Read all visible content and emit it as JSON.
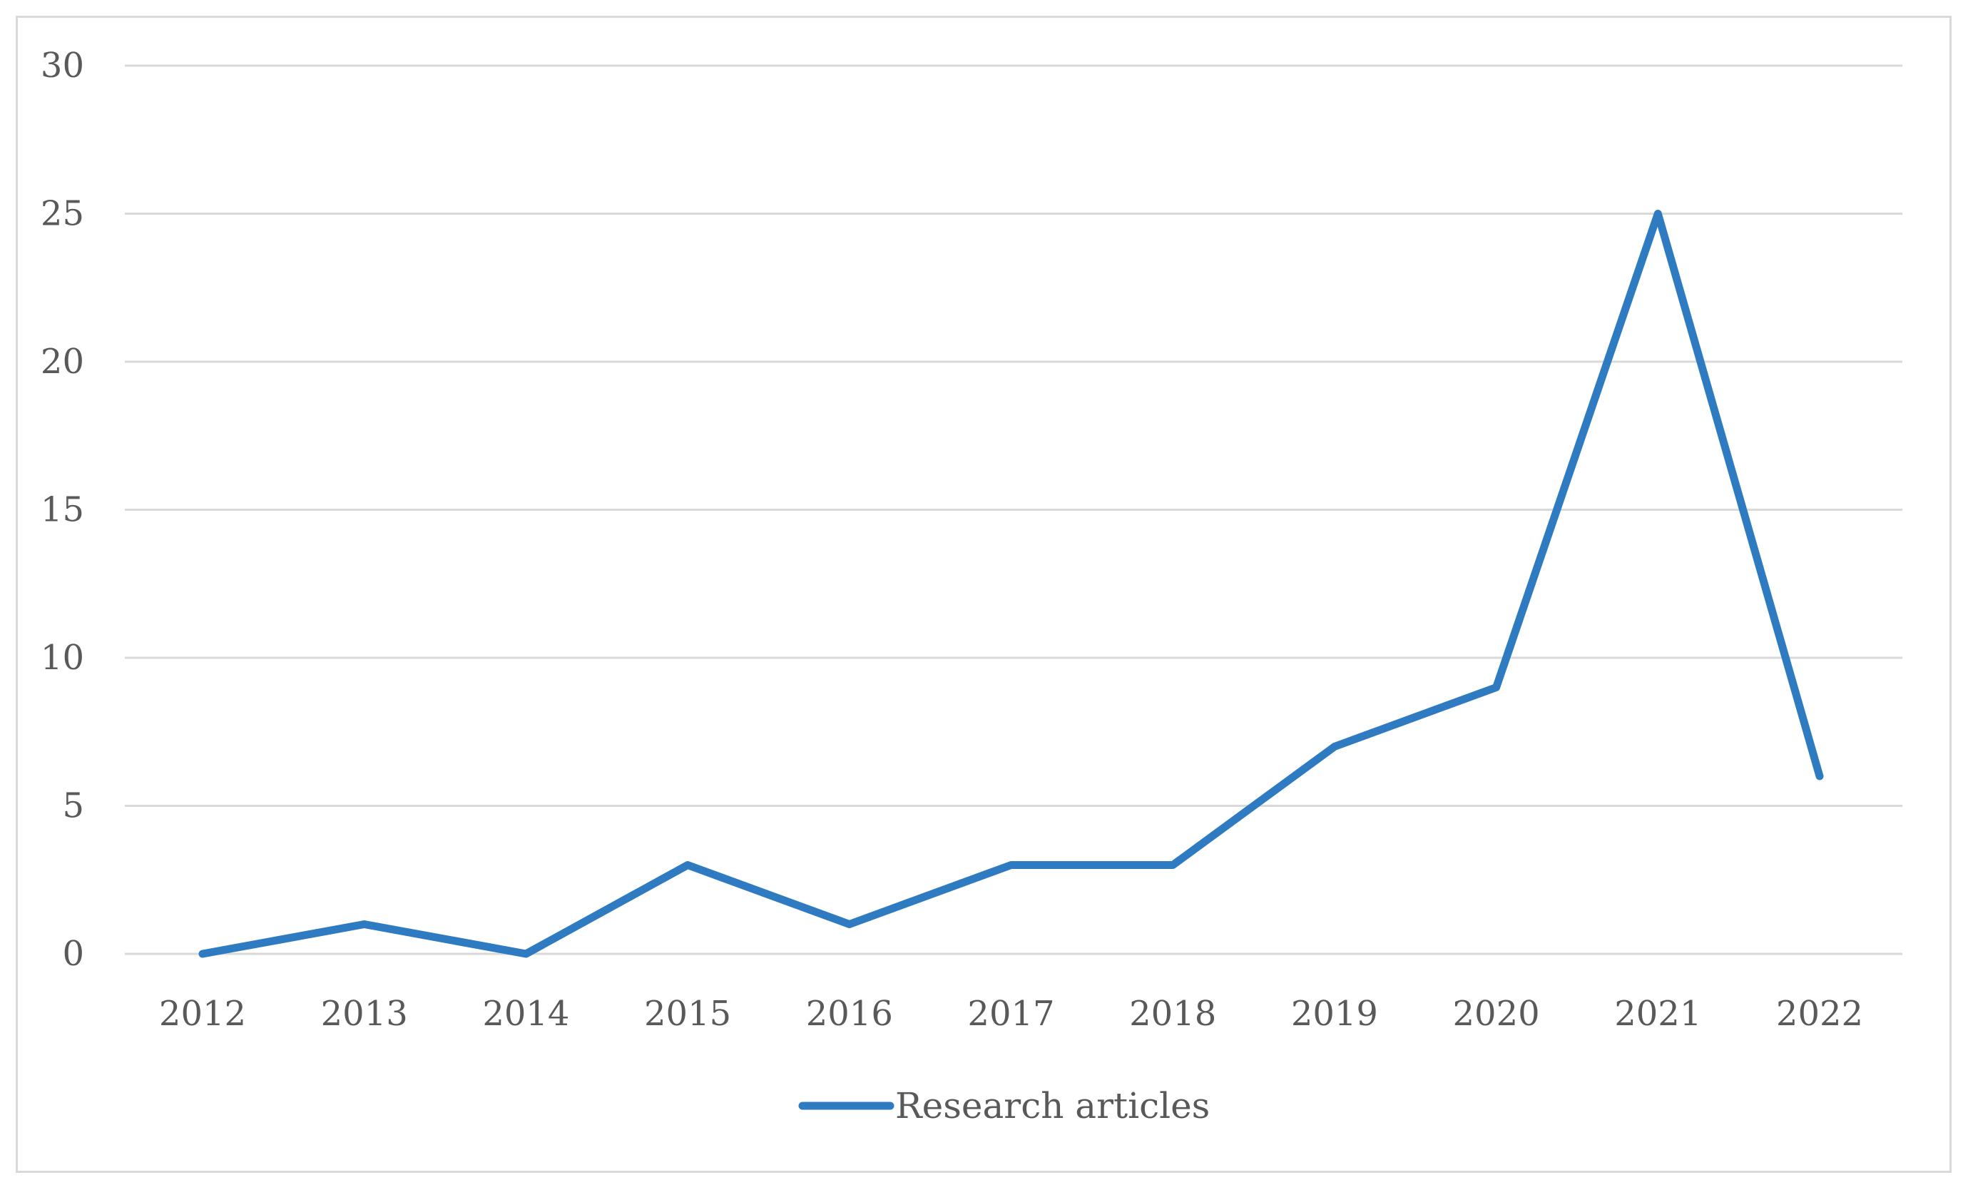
{
  "chart_data": {
    "type": "line",
    "categories": [
      "2012",
      "2013",
      "2014",
      "2015",
      "2016",
      "2017",
      "2018",
      "2019",
      "2020",
      "2021",
      "2022"
    ],
    "series": [
      {
        "name": "Research articles",
        "values": [
          0,
          1,
          0,
          3,
          1,
          3,
          3,
          7,
          9,
          25,
          6
        ],
        "color": "#2e7bc1"
      }
    ],
    "ylim": [
      0,
      30
    ],
    "yticks": [
      "0",
      "5",
      "10",
      "15",
      "20",
      "25",
      "30"
    ],
    "grid": true,
    "legend": "bottom-center",
    "title": "",
    "xlabel": "",
    "ylabel": ""
  }
}
